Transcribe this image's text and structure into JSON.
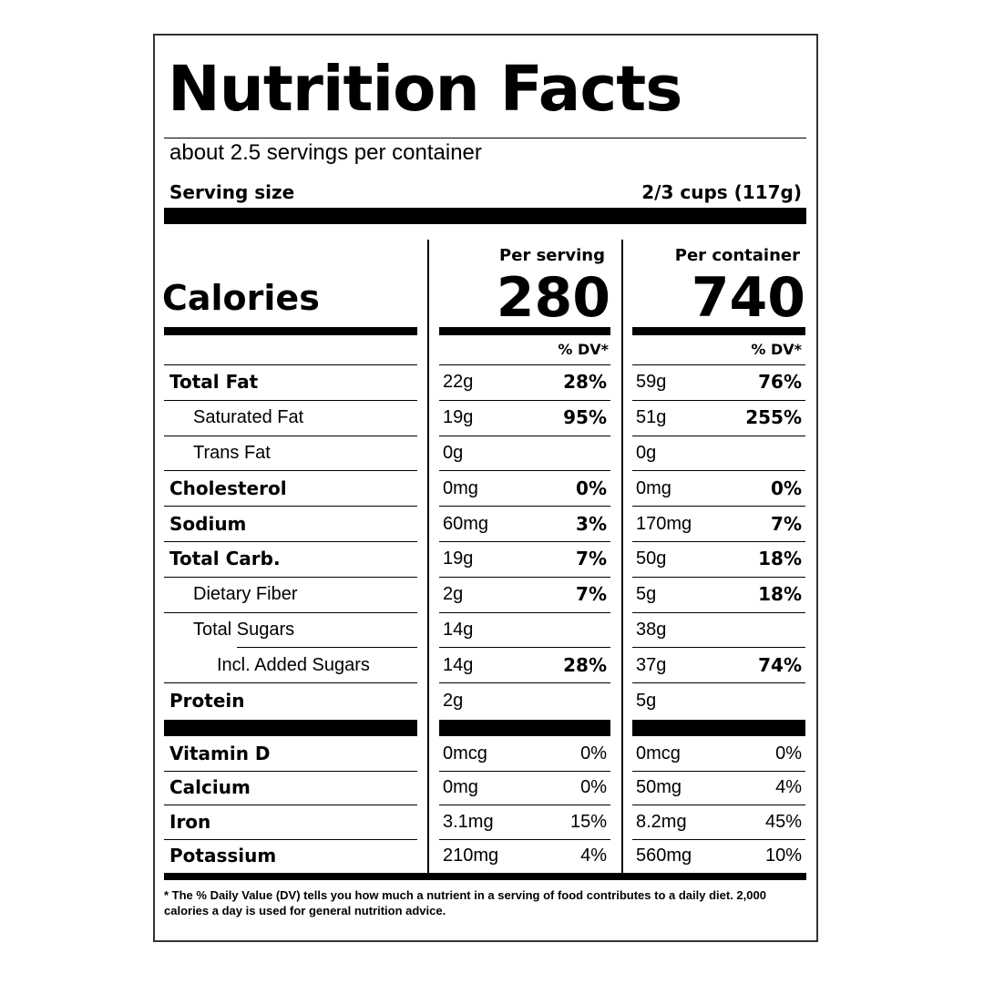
{
  "title": "Nutrition Facts",
  "servings": "about 2.5 servings per container",
  "serving_size": {
    "label": "Serving size",
    "value": "2/3 cups (117g)"
  },
  "calories": {
    "label": "Calories",
    "per_serving_header": "Per serving",
    "per_container_header": "Per container",
    "per_serving": "280",
    "per_container": "740"
  },
  "dv_header": "% DV*",
  "nutrients": [
    {
      "name": "Total Fat",
      "level": 0,
      "serving_amount": "22g",
      "serving_dv": "28%",
      "container_amount": "59g",
      "container_dv": "76%"
    },
    {
      "name": "Saturated Fat",
      "level": 1,
      "serving_amount": "19g",
      "serving_dv": "95%",
      "container_amount": "51g",
      "container_dv": "255%"
    },
    {
      "name": "Trans Fat",
      "level": 1,
      "serving_amount": "0g",
      "container_amount": "0g"
    },
    {
      "name": "Cholesterol",
      "level": 0,
      "serving_amount": "0mg",
      "serving_dv": "0%",
      "container_amount": "0mg",
      "container_dv": "0%"
    },
    {
      "name": "Sodium",
      "level": 0,
      "serving_amount": "60mg",
      "serving_dv": "3%",
      "container_amount": "170mg",
      "container_dv": "7%"
    },
    {
      "name": "Total Carb.",
      "level": 0,
      "serving_amount": "19g",
      "serving_dv": "7%",
      "container_amount": "50g",
      "container_dv": "18%"
    },
    {
      "name": "Dietary Fiber",
      "level": 1,
      "serving_amount": "2g",
      "serving_dv": "7%",
      "container_amount": "5g",
      "container_dv": "18%"
    },
    {
      "name": "Total Sugars",
      "level": 1,
      "serving_amount": "14g",
      "container_amount": "38g"
    },
    {
      "name": "Incl. Added Sugars",
      "level": 2,
      "serving_amount": "14g",
      "serving_dv": "28%",
      "container_amount": "37g",
      "container_dv": "74%"
    },
    {
      "name": "Protein",
      "level": 0,
      "serving_amount": "2g",
      "container_amount": "5g"
    }
  ],
  "vitamins": [
    {
      "name": "Vitamin D",
      "serving_amount": "0mcg",
      "serving_dv": "0%",
      "container_amount": "0mcg",
      "container_dv": "0%"
    },
    {
      "name": "Calcium",
      "serving_amount": "0mg",
      "serving_dv": "0%",
      "container_amount": "50mg",
      "container_dv": "4%"
    },
    {
      "name": "Iron",
      "serving_amount": "3.1mg",
      "serving_dv": "15%",
      "container_amount": "8.2mg",
      "container_dv": "45%"
    },
    {
      "name": "Potassium",
      "serving_amount": "210mg",
      "serving_dv": "4%",
      "container_amount": "560mg",
      "container_dv": "10%"
    }
  ],
  "footnote": "* The % Daily Value (DV) tells you how much a nutrient in a serving of food contributes to a daily diet. 2,000 calories a day is used for general nutrition advice."
}
